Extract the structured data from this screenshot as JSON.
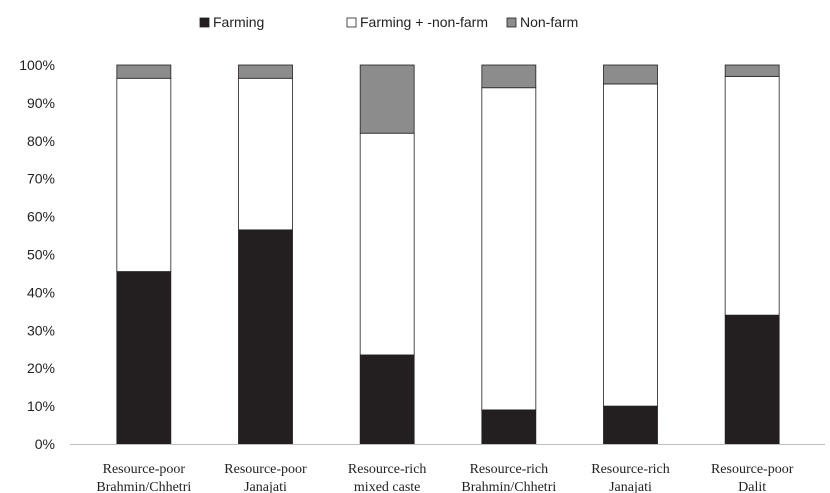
{
  "chart_data": {
    "type": "bar",
    "stacked": true,
    "percent_axis": true,
    "categories": [
      [
        "Resource-poor",
        "Brahmin/Chhetri"
      ],
      [
        "Resource-poor",
        "Janajati"
      ],
      [
        "Resource-rich",
        "mixed caste"
      ],
      [
        "Resource-rich",
        "Brahmin/Chhetri"
      ],
      [
        "Resource-rich",
        "Janajati"
      ],
      [
        "Resource-poor",
        "Dalit"
      ]
    ],
    "series": [
      {
        "name": "Farming",
        "color": "#231f20",
        "values": [
          45.5,
          56.5,
          23.5,
          9,
          10,
          34
        ]
      },
      {
        "name": "Farming + -non-farm",
        "color": "#ffffff",
        "values": [
          51,
          40,
          58.5,
          85,
          85,
          63
        ]
      },
      {
        "name": "Non-farm",
        "color": "#8c8c8c",
        "values": [
          3.5,
          3.5,
          18,
          6,
          5,
          3
        ]
      }
    ],
    "yticks": [
      "0%",
      "10%",
      "20%",
      "30%",
      "40%",
      "50%",
      "60%",
      "70%",
      "80%",
      "90%",
      "100%"
    ],
    "ylim": [
      0,
      100
    ],
    "legend_position": "top",
    "grid": false
  }
}
